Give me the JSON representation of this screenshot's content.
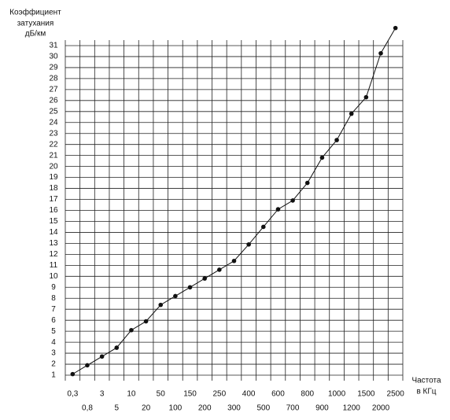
{
  "chart_data": {
    "type": "scatter",
    "y_label": [
      "Коэффициент",
      "затухания",
      "дБ/км"
    ],
    "x_label": [
      "Частота",
      "в КГц"
    ],
    "categories": [
      "0,3",
      "0,8",
      "3",
      "5",
      "10",
      "20",
      "50",
      "100",
      "150",
      "200",
      "250",
      "300",
      "400",
      "500",
      "600",
      "700",
      "800",
      "900",
      "1000",
      "1200",
      "1500",
      "2000",
      "2500"
    ],
    "values": [
      1.1,
      1.9,
      2.7,
      3.5,
      5.1,
      5.9,
      7.4,
      8.2,
      9.0,
      9.8,
      10.6,
      11.4,
      12.9,
      14.5,
      16.1,
      16.9,
      18.5,
      20.8,
      22.4,
      24.8,
      26.3,
      30.3,
      32.6
    ],
    "color": "#111111",
    "ylim": [
      0.5,
      31.5
    ],
    "yticks": [
      1,
      2,
      3,
      4,
      5,
      6,
      7,
      8,
      9,
      10,
      11,
      12,
      13,
      14,
      15,
      16,
      17,
      18,
      19,
      20,
      21,
      22,
      23,
      24,
      25,
      26,
      27,
      28,
      29,
      30,
      31
    ],
    "grid": true
  }
}
